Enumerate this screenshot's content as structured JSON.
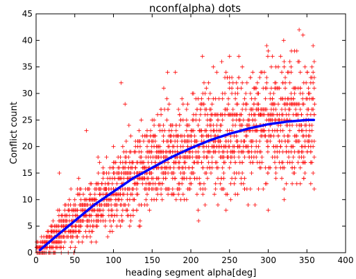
{
  "chart_data": {
    "type": "scatter",
    "title": "nconf(alpha) dots",
    "xlabel": "heading segment alpha[deg]",
    "ylabel": "Conflict count",
    "xlim": [
      0,
      400
    ],
    "ylim": [
      0,
      45
    ],
    "xticks": [
      0,
      50,
      100,
      150,
      200,
      250,
      300,
      350,
      400
    ],
    "yticks": [
      0,
      5,
      10,
      15,
      20,
      25,
      30,
      35,
      40,
      45
    ],
    "grid": false,
    "legend": "none",
    "colors": {
      "points": "#ff0000",
      "fit": "#0000ff"
    },
    "series": [
      {
        "marker": "+",
        "color": "#ff0000",
        "description_of_density": "dense cloud of integer-valued conflict counts for alpha 1..360",
        "x_range": [
          1,
          360
        ],
        "sample_points": [
          [
            5,
            1
          ],
          [
            10,
            2
          ],
          [
            20,
            4
          ],
          [
            30,
            8
          ],
          [
            30,
            15
          ],
          [
            40,
            5
          ],
          [
            45,
            12
          ],
          [
            50,
            10
          ],
          [
            55,
            14
          ],
          [
            65,
            23
          ],
          [
            70,
            3
          ],
          [
            80,
            18
          ],
          [
            90,
            12
          ],
          [
            100,
            20
          ],
          [
            100,
            6
          ],
          [
            110,
            32
          ],
          [
            115,
            28
          ],
          [
            120,
            24
          ],
          [
            130,
            15
          ],
          [
            150,
            25
          ],
          [
            160,
            20
          ],
          [
            165,
            31
          ],
          [
            170,
            34
          ],
          [
            180,
            34
          ],
          [
            190,
            16
          ],
          [
            200,
            22
          ],
          [
            210,
            6
          ],
          [
            215,
            37
          ],
          [
            225,
            30
          ],
          [
            240,
            36
          ],
          [
            250,
            37
          ],
          [
            260,
            26
          ],
          [
            265,
            24
          ],
          [
            280,
            34
          ],
          [
            290,
            26
          ],
          [
            300,
            38
          ],
          [
            300,
            8
          ],
          [
            310,
            35
          ],
          [
            320,
            40
          ],
          [
            330,
            38
          ],
          [
            340,
            42
          ],
          [
            345,
            41
          ],
          [
            355,
            33
          ],
          [
            360,
            28
          ]
        ]
      },
      {
        "type": "line",
        "color": "#0000ff",
        "x": [
          5,
          25,
          50,
          75,
          100,
          125,
          150,
          175,
          200,
          225,
          250,
          275,
          300,
          325,
          350,
          360
        ],
        "y": [
          0.5,
          3,
          6,
          9,
          11.5,
          14,
          16,
          18,
          19.7,
          21.2,
          22.4,
          23.4,
          24.2,
          24.7,
          25.0,
          25.0
        ]
      }
    ]
  }
}
